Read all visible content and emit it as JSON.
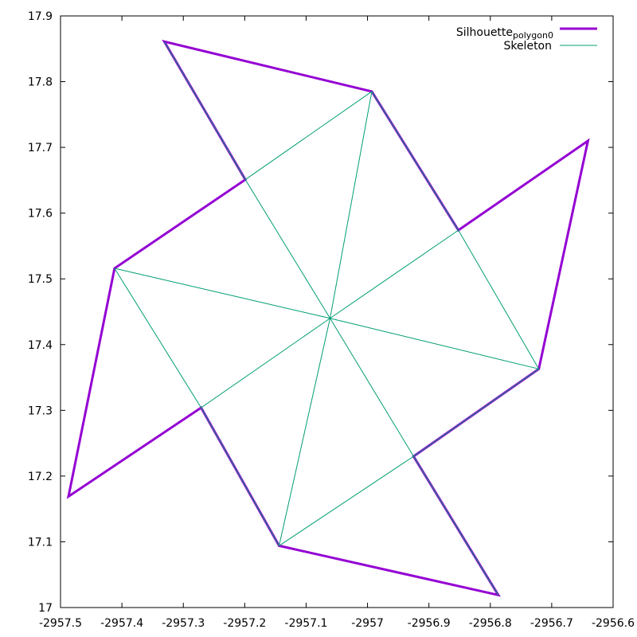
{
  "chart_data": {
    "type": "line",
    "title": "",
    "xlabel": "",
    "ylabel": "",
    "xlim": [
      -2957.5,
      -2956.6
    ],
    "ylim": [
      17.0,
      17.9
    ],
    "x_ticks": [
      -2957.5,
      -2957.4,
      -2957.3,
      -2957.2,
      -2957.1,
      -2957.0,
      -2956.9,
      -2956.8,
      -2956.7,
      -2956.6
    ],
    "x_tick_labels": [
      "-2957.5",
      "-2957.4",
      "-2957.3",
      "-2957.2",
      "-2957.1",
      "-2957",
      "-2956.9",
      "-2956.8",
      "-2956.7",
      "-2956.6"
    ],
    "y_ticks": [
      17.0,
      17.1,
      17.2,
      17.3,
      17.4,
      17.5,
      17.6,
      17.7,
      17.8,
      17.9
    ],
    "y_tick_labels": [
      "17",
      "17.1",
      "17.2",
      "17.3",
      "17.4",
      "17.5",
      "17.6",
      "17.7",
      "17.8",
      "17.9"
    ],
    "grid": false,
    "legend_position": "top-right",
    "series": [
      {
        "name": "Silhouette",
        "name_subscript": "polygon0",
        "color": "#9400d3",
        "closed": true,
        "points": [
          [
            -2957.331,
            17.861
          ],
          [
            -2956.993,
            17.785
          ],
          [
            -2956.852,
            17.574
          ],
          [
            -2956.641,
            17.71
          ],
          [
            -2956.721,
            17.363
          ],
          [
            -2956.925,
            17.23
          ],
          [
            -2956.787,
            17.019
          ],
          [
            -2957.144,
            17.094
          ],
          [
            -2957.271,
            17.304
          ],
          [
            -2957.487,
            17.169
          ],
          [
            -2957.412,
            17.516
          ],
          [
            -2957.199,
            17.651
          ]
        ]
      },
      {
        "name": "Skeleton",
        "color": "#009e73",
        "segments": [
          [
            [
              -2957.331,
              17.861
            ],
            [
              -2957.199,
              17.651
            ]
          ],
          [
            [
              -2957.199,
              17.651
            ],
            [
              -2957.061,
              17.44
            ]
          ],
          [
            [
              -2957.199,
              17.651
            ],
            [
              -2956.993,
              17.785
            ]
          ],
          [
            [
              -2956.993,
              17.785
            ],
            [
              -2957.061,
              17.44
            ]
          ],
          [
            [
              -2956.993,
              17.785
            ],
            [
              -2956.852,
              17.574
            ]
          ],
          [
            [
              -2956.852,
              17.574
            ],
            [
              -2957.061,
              17.44
            ]
          ],
          [
            [
              -2956.852,
              17.574
            ],
            [
              -2956.721,
              17.363
            ]
          ],
          [
            [
              -2956.721,
              17.363
            ],
            [
              -2957.061,
              17.44
            ]
          ],
          [
            [
              -2956.721,
              17.363
            ],
            [
              -2956.925,
              17.23
            ]
          ],
          [
            [
              -2956.925,
              17.23
            ],
            [
              -2957.061,
              17.44
            ]
          ],
          [
            [
              -2956.925,
              17.23
            ],
            [
              -2956.787,
              17.019
            ]
          ],
          [
            [
              -2956.925,
              17.23
            ],
            [
              -2957.144,
              17.094
            ]
          ],
          [
            [
              -2957.144,
              17.094
            ],
            [
              -2957.061,
              17.44
            ]
          ],
          [
            [
              -2957.144,
              17.094
            ],
            [
              -2957.271,
              17.304
            ]
          ],
          [
            [
              -2957.271,
              17.304
            ],
            [
              -2957.061,
              17.44
            ]
          ],
          [
            [
              -2957.271,
              17.304
            ],
            [
              -2957.412,
              17.516
            ]
          ],
          [
            [
              -2957.412,
              17.516
            ],
            [
              -2957.061,
              17.44
            ]
          ]
        ]
      }
    ]
  }
}
